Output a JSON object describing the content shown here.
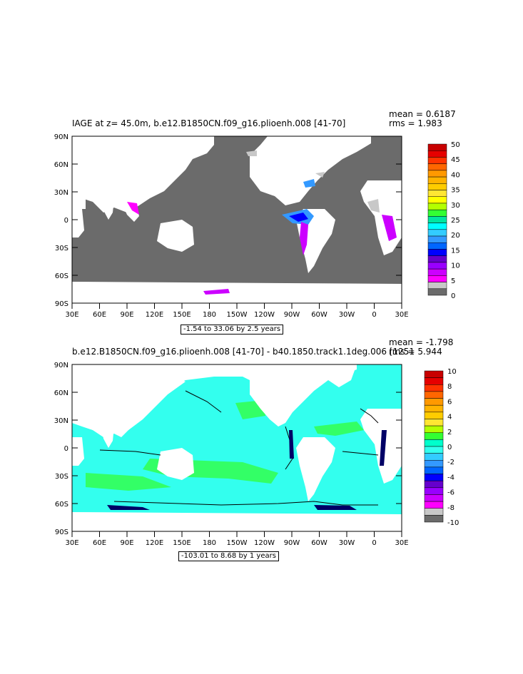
{
  "colors": {
    "land": "#ffffff",
    "top_ocean": "#6b6b6b",
    "bottom_ocean": "#33ffee",
    "frame": "#000000"
  },
  "panel1": {
    "title": "IAGE at z=  45.0m, b.e12.B1850CN.f09_g16.plioenh.008  [41-70]",
    "stat_mean": "mean = 0.6187",
    "stat_rms": "rms = 1.983",
    "contour_info": "-1.54 to 33.06 by 2.5 years",
    "colorbar": {
      "labels": [
        "50",
        "45",
        "40",
        "35",
        "30",
        "25",
        "20",
        "15",
        "10",
        "5",
        "0"
      ],
      "colors": [
        "#c80000",
        "#e60000",
        "#ff3300",
        "#ff6600",
        "#ff9900",
        "#ffb300",
        "#ffcc00",
        "#ffe633",
        "#ffff00",
        "#b3ff00",
        "#33ff33",
        "#00e6a0",
        "#00ffff",
        "#33ccff",
        "#3399ff",
        "#0066ff",
        "#0000ff",
        "#6600cc",
        "#9900ff",
        "#cc00ff",
        "#ff00ff",
        "#c8c8c8",
        "#6b6b6b"
      ]
    }
  },
  "panel2": {
    "title": "b.e12.B1850CN.f09_g16.plioenh.008  [41-70]  -  b40.1850.track1.1deg.006  [1251",
    "stat_mean": "mean = -1.798",
    "stat_rms": "rms = 5.944",
    "contour_info": "-103.01 to 8.68 by 1 years",
    "colorbar": {
      "labels": [
        "10",
        "8",
        "6",
        "4",
        "2",
        "0",
        "-2",
        "-4",
        "-6",
        "-8",
        "-10"
      ],
      "colors": [
        "#c80000",
        "#e60000",
        "#ff3300",
        "#ff6600",
        "#ff9900",
        "#ffb300",
        "#ffcc00",
        "#ffe633",
        "#b3ff00",
        "#33ff33",
        "#00ffcc",
        "#33ffee",
        "#33ccff",
        "#3399ff",
        "#0066ff",
        "#0000ff",
        "#6600cc",
        "#9900ff",
        "#cc00ff",
        "#ff00ff",
        "#c8c8c8",
        "#6b6b6b"
      ]
    }
  },
  "axes": {
    "lat_labels": [
      "90N",
      "60N",
      "30N",
      "0",
      "30S",
      "60S",
      "90S"
    ],
    "lon_labels": [
      "30E",
      "60E",
      "90E",
      "120E",
      "150E",
      "180",
      "150W",
      "120W",
      "90W",
      "60W",
      "30W",
      "0",
      "30E"
    ]
  }
}
